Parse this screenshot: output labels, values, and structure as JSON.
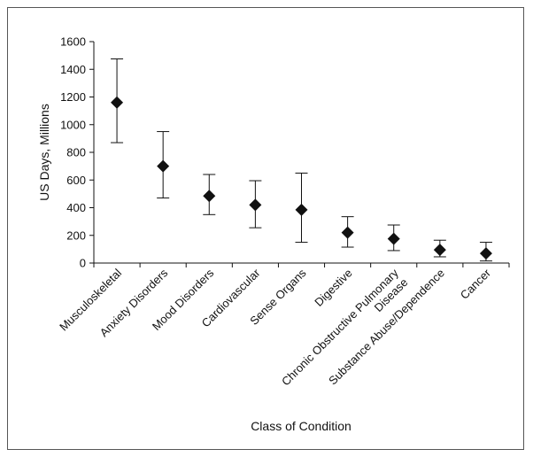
{
  "chart_data": {
    "type": "scatter",
    "title": "",
    "xlabel": "Class of Condition",
    "ylabel": "US Days, Millions",
    "ylim": [
      0,
      1600
    ],
    "yticks": [
      0,
      200,
      400,
      600,
      800,
      1000,
      1200,
      1400,
      1600
    ],
    "grid": false,
    "marker": "diamond",
    "error_bars": true,
    "categories": [
      "Musculoskeletal",
      "Anxiety Disorders",
      "Mood Disorders",
      "Cardiovascular",
      "Sense Organs",
      "Digestive",
      "Chronic Obstructive Pulmonary Disease",
      "Substance Abuse/Dependence",
      "Cancer"
    ],
    "category_label_lines": [
      [
        "Musculoskeletal"
      ],
      [
        "Anxiety Disorders"
      ],
      [
        "Mood Disorders"
      ],
      [
        "Cardiovascular"
      ],
      [
        "Sense Organs"
      ],
      [
        "Digestive"
      ],
      [
        "Chronic Obstructive Pulmonary",
        "Disease"
      ],
      [
        "Substance Abuse/Dependence"
      ],
      [
        "Cancer"
      ]
    ],
    "values": [
      1160,
      700,
      485,
      420,
      385,
      220,
      175,
      95,
      70
    ],
    "lower": [
      870,
      470,
      350,
      255,
      150,
      115,
      90,
      45,
      15
    ],
    "upper": [
      1475,
      950,
      640,
      595,
      650,
      335,
      275,
      165,
      150
    ]
  }
}
